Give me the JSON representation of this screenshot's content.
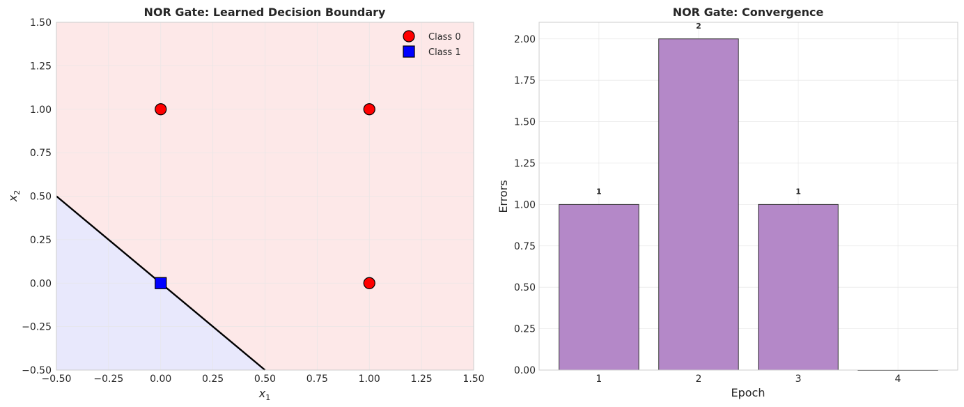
{
  "chart_data": [
    {
      "type": "scatter",
      "title": "NOR Gate: Learned Decision Boundary",
      "xlabel_base": "x",
      "xlabel_sub": "1",
      "ylabel_base": "x",
      "ylabel_sub": "2",
      "xlim": [
        -0.5,
        1.5
      ],
      "ylim": [
        -0.5,
        1.5
      ],
      "xticks": [
        "−0.50",
        "−0.25",
        "0.00",
        "0.25",
        "0.50",
        "0.75",
        "1.00",
        "1.25",
        "1.50"
      ],
      "xtick_values": [
        -0.5,
        -0.25,
        0,
        0.25,
        0.5,
        0.75,
        1.0,
        1.25,
        1.5
      ],
      "yticks": [
        "−0.50",
        "−0.25",
        "0.00",
        "0.25",
        "0.50",
        "0.75",
        "1.00",
        "1.25",
        "1.50"
      ],
      "ytick_values": [
        -0.5,
        -0.25,
        0,
        0.25,
        0.5,
        0.75,
        1.0,
        1.25,
        1.5
      ],
      "grid": true,
      "legend_position": "top-right",
      "series": [
        {
          "name": "Class 0",
          "marker": "circle",
          "color": "#ff0000",
          "points": [
            [
              0,
              1
            ],
            [
              1,
              1
            ],
            [
              1,
              0
            ]
          ]
        },
        {
          "name": "Class 1",
          "marker": "square",
          "color": "#0000ff",
          "points": [
            [
              0,
              0
            ]
          ]
        }
      ],
      "decision_boundary": {
        "from": [
          -0.5,
          0.5
        ],
        "to": [
          0.5,
          -0.5
        ],
        "color": "#000000"
      },
      "regions": {
        "class_0_color": "#fde8e8",
        "class_1_color": "#e8e8fc"
      }
    },
    {
      "type": "bar",
      "title": "NOR Gate: Convergence",
      "xlabel": "Epoch",
      "ylabel": "Errors",
      "categories": [
        "1",
        "2",
        "3",
        "4"
      ],
      "values": [
        1,
        2,
        1,
        0
      ],
      "data_labels": [
        "1",
        "2",
        "1",
        ""
      ],
      "ylim": [
        0,
        2.1
      ],
      "yticks": [
        "0.00",
        "0.25",
        "0.50",
        "0.75",
        "1.00",
        "1.25",
        "1.50",
        "1.75",
        "2.00"
      ],
      "ytick_values": [
        0,
        0.25,
        0.5,
        0.75,
        1.0,
        1.25,
        1.5,
        1.75,
        2.0
      ],
      "bar_color": "#b488c8",
      "edge_color": "#333333",
      "grid": true
    }
  ]
}
